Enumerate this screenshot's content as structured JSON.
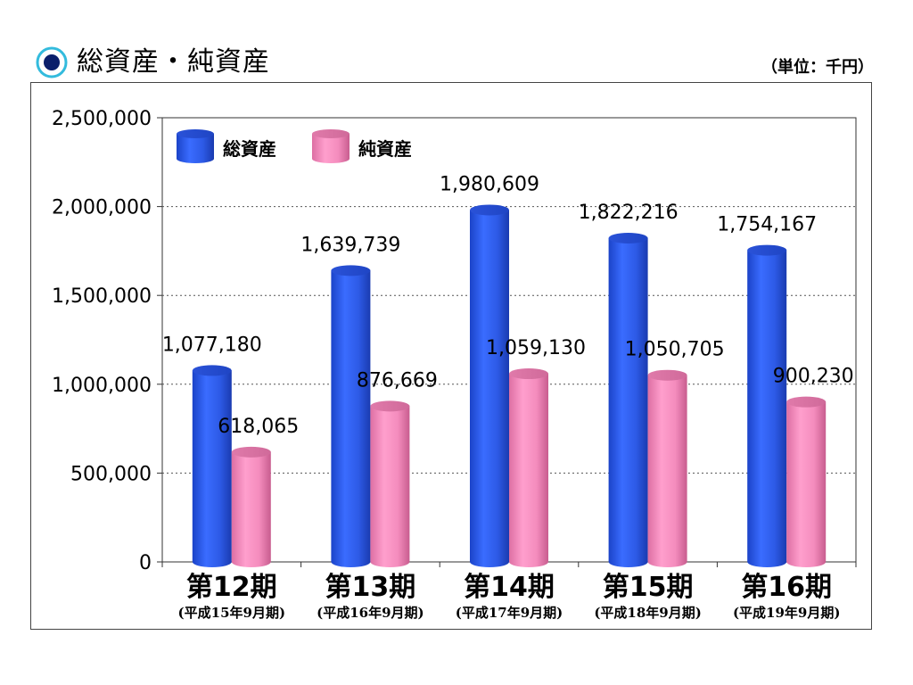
{
  "header": {
    "title": "総資産・純資産",
    "title_icon": "bullet-circle-icon",
    "unit_label": "（単位：千円）"
  },
  "colors": {
    "total_assets": "#2f5fe8",
    "net_assets": "#f08cbc",
    "grid": "#555555",
    "frame": "#444444"
  },
  "chart_data": {
    "type": "bar",
    "categories": [
      "第12期",
      "第13期",
      "第14期",
      "第15期",
      "第16期"
    ],
    "category_sublabels": [
      "(平成15年9月期)",
      "(平成16年9月期)",
      "(平成17年9月期)",
      "(平成18年9月期)",
      "(平成19年9月期)"
    ],
    "series": [
      {
        "name": "総資産",
        "values": [
          1077180,
          1639739,
          1980609,
          1822216,
          1754167
        ],
        "value_labels": [
          "1,077,180",
          "1,639,739",
          "1,980,609",
          "1,822,216",
          "1,754,167"
        ]
      },
      {
        "name": "純資産",
        "values": [
          618065,
          876669,
          1059130,
          1050705,
          900230
        ],
        "value_labels": [
          "618,065",
          "876,669",
          "1,059,130",
          "1,050,705",
          "900,230"
        ]
      }
    ],
    "y_ticks": [
      "0",
      "500,000",
      "1,000,000",
      "1,500,000",
      "2,000,000",
      "2,500,000"
    ],
    "ylim": [
      0,
      2500000
    ],
    "grid": true,
    "legend_position": "top-left",
    "bar_style": "3d-cylinder"
  }
}
